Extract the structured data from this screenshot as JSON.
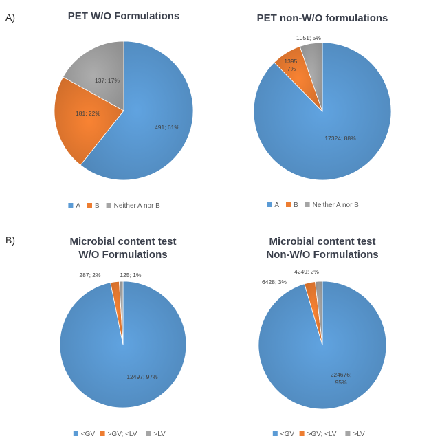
{
  "panels": [
    {
      "label": "A)"
    },
    {
      "label": "B)"
    }
  ],
  "colors": {
    "A": "#5b9bd5",
    "B": "#ed7d31",
    "other": "#a5a5a5"
  },
  "chart_data": [
    {
      "type": "pie",
      "title": [
        "PET W/O Formulations"
      ],
      "categories": [
        "A",
        "B",
        "Neither A nor B"
      ],
      "values": [
        491,
        181,
        137
      ],
      "data_labels": [
        "491; 61%",
        "181; 22%",
        "137; 17%"
      ],
      "colors": [
        "#5b9bd5",
        "#ed7d31",
        "#a5a5a5"
      ],
      "legend": "bottom"
    },
    {
      "type": "pie",
      "title": [
        "PET non-W/O   formulations"
      ],
      "categories": [
        "A",
        "B",
        "Neither A nor B"
      ],
      "values": [
        17324,
        1395,
        1051
      ],
      "data_labels": [
        "17324; 88%",
        "1395;\n7%",
        "1051;  5%"
      ],
      "colors": [
        "#5b9bd5",
        "#ed7d31",
        "#a5a5a5"
      ],
      "legend": "bottom"
    },
    {
      "type": "pie",
      "title": [
        "Microbial content test",
        "W/O Formulations"
      ],
      "categories": [
        "<GV",
        ">GV; <LV",
        ">LV"
      ],
      "values": [
        12497,
        287,
        125
      ],
      "data_labels": [
        "12497;  97%",
        "287;  2%",
        "125;  1%"
      ],
      "colors": [
        "#5b9bd5",
        "#ed7d31",
        "#a5a5a5"
      ],
      "legend": "bottom"
    },
    {
      "type": "pie",
      "title": [
        "Microbial content test",
        "Non-W/O Formulations"
      ],
      "categories": [
        "<GV",
        ">GV; <LV",
        ">LV"
      ],
      "values": [
        224676,
        6428,
        4249
      ],
      "data_labels": [
        "224676;\n95%",
        "6428;  3%",
        "4249;  2%"
      ],
      "colors": [
        "#5b9bd5",
        "#ed7d31",
        "#a5a5a5"
      ],
      "legend": "bottom"
    }
  ]
}
